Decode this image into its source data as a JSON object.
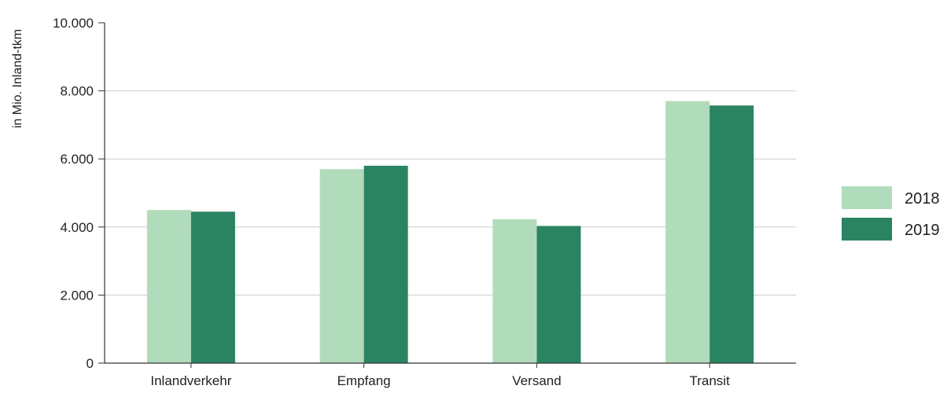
{
  "chart_data": {
    "type": "bar",
    "title": "",
    "xlabel": "",
    "ylabel": "in Mio. Inland-tkm",
    "ylim": [
      0,
      10000
    ],
    "yticks": [
      0,
      2000,
      4000,
      6000,
      8000,
      10000
    ],
    "ytick_labels": [
      "0",
      "2.000",
      "4.000",
      "6.000",
      "8.000",
      "10.000"
    ],
    "grid": true,
    "legend_position": "right",
    "categories": [
      "Inlandverkehr",
      "Empfang",
      "Versand",
      "Transit"
    ],
    "series": [
      {
        "name": "2018",
        "color": "#b1dcbb",
        "values": [
          4500,
          5700,
          4230,
          7700
        ]
      },
      {
        "name": "2019",
        "color": "#2b8461",
        "values": [
          4450,
          5800,
          4030,
          7570
        ]
      }
    ]
  }
}
